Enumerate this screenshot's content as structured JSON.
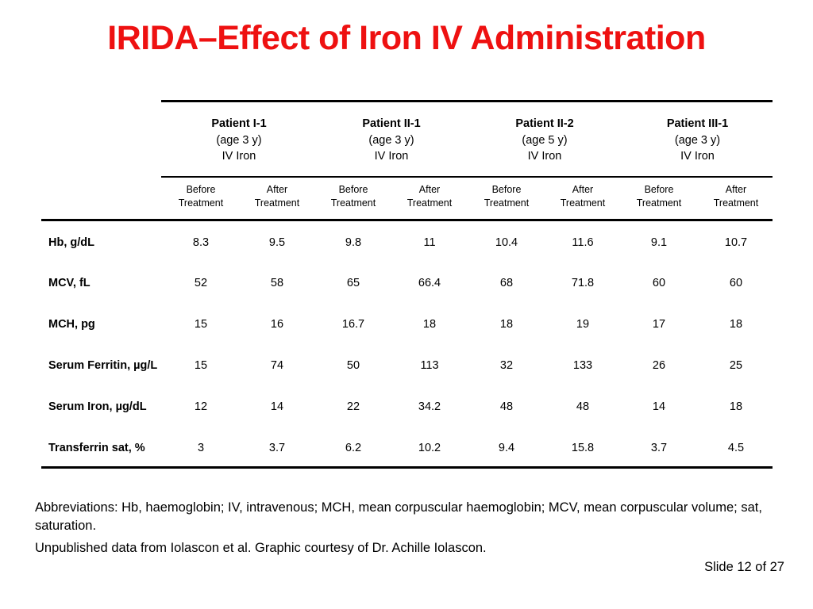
{
  "title": "IRIDA–Effect of Iron IV Administration",
  "patients": [
    {
      "name": "Patient I-1",
      "age": "(age 3 y)",
      "treatment": "IV Iron"
    },
    {
      "name": "Patient II-1",
      "age": "(age 3 y)",
      "treatment": "IV Iron"
    },
    {
      "name": "Patient II-2",
      "age": "(age 5 y)",
      "treatment": "IV Iron"
    },
    {
      "name": "Patient III-1",
      "age": "(age 3 y)",
      "treatment": "IV Iron"
    }
  ],
  "subheaders": [
    [
      "Before",
      "Treatment"
    ],
    [
      "After",
      "Treatment"
    ],
    [
      "Before",
      "Treatment"
    ],
    [
      "After",
      "Treatment"
    ],
    [
      "Before",
      "Treatment"
    ],
    [
      "After",
      "Treatment"
    ],
    [
      "Before",
      "Treatment"
    ],
    [
      "After",
      "Treatment"
    ]
  ],
  "rows": [
    {
      "label": "Hb, g/dL",
      "values": [
        "8.3",
        "9.5",
        "9.8",
        "11",
        "10.4",
        "11.6",
        "9.1",
        "10.7"
      ]
    },
    {
      "label": "MCV, fL",
      "values": [
        "52",
        "58",
        "65",
        "66.4",
        "68",
        "71.8",
        "60",
        "60"
      ]
    },
    {
      "label": "MCH, pg",
      "values": [
        "15",
        "16",
        "16.7",
        "18",
        "18",
        "19",
        "17",
        "18"
      ]
    },
    {
      "label": "Serum Ferritin, µg/L",
      "values": [
        "15",
        "74",
        "50",
        "113",
        "32",
        "133",
        "26",
        "25"
      ]
    },
    {
      "label": "Serum Iron, µg/dL",
      "values": [
        "12",
        "14",
        "22",
        "34.2",
        "48",
        "48",
        "14",
        "18"
      ]
    },
    {
      "label": "Transferrin sat, %",
      "values": [
        "3",
        "3.7",
        "6.2",
        "10.2",
        "9.4",
        "15.8",
        "3.7",
        "4.5"
      ]
    }
  ],
  "footnotes": {
    "abbreviations": "Abbreviations: Hb, haemoglobin; IV, intravenous; MCH, mean corpuscular haemoglobin; MCV, mean corpuscular volume; sat, saturation.",
    "source": "Unpublished data from Iolascon et al. Graphic courtesy of Dr. Achille Iolascon."
  },
  "slide_number": "Slide 12 of 27",
  "colors": {
    "title": "#ee1111",
    "text": "#000000",
    "background": "#ffffff"
  }
}
